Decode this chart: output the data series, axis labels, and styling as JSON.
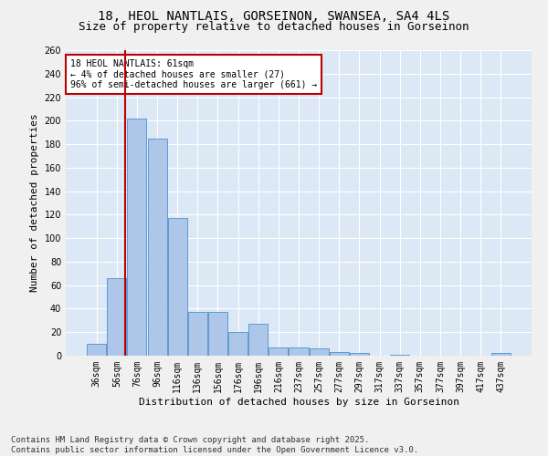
{
  "title_line1": "18, HEOL NANTLAIS, GORSEINON, SWANSEA, SA4 4LS",
  "title_line2": "Size of property relative to detached houses in Gorseinon",
  "xlabel": "Distribution of detached houses by size in Gorseinon",
  "ylabel": "Number of detached properties",
  "categories": [
    "36sqm",
    "56sqm",
    "76sqm",
    "96sqm",
    "116sqm",
    "136sqm",
    "156sqm",
    "176sqm",
    "196sqm",
    "216sqm",
    "237sqm",
    "257sqm",
    "277sqm",
    "297sqm",
    "317sqm",
    "337sqm",
    "357sqm",
    "377sqm",
    "397sqm",
    "417sqm",
    "437sqm"
  ],
  "values": [
    10,
    66,
    202,
    185,
    117,
    37,
    37,
    20,
    27,
    7,
    7,
    6,
    3,
    2,
    0,
    1,
    0,
    0,
    0,
    0,
    2
  ],
  "bar_color": "#aec6e8",
  "bar_edge_color": "#5b9bd5",
  "vline_color": "#c00000",
  "vline_x": 1.425,
  "annotation_text": "18 HEOL NANTLAIS: 61sqm\n← 4% of detached houses are smaller (27)\n96% of semi-detached houses are larger (661) →",
  "annotation_box_color": "#ffffff",
  "annotation_box_edge_color": "#c00000",
  "ylim": [
    0,
    260
  ],
  "yticks": [
    0,
    20,
    40,
    60,
    80,
    100,
    120,
    140,
    160,
    180,
    200,
    220,
    240,
    260
  ],
  "footnote": "Contains HM Land Registry data © Crown copyright and database right 2025.\nContains public sector information licensed under the Open Government Licence v3.0.",
  "fig_bg_color": "#f0f0f0",
  "plot_bg_color": "#dce8f5",
  "grid_color": "#ffffff",
  "title_fontsize": 10,
  "subtitle_fontsize": 9,
  "axis_label_fontsize": 8,
  "tick_fontsize": 7,
  "annotation_fontsize": 7,
  "footnote_fontsize": 6.5
}
